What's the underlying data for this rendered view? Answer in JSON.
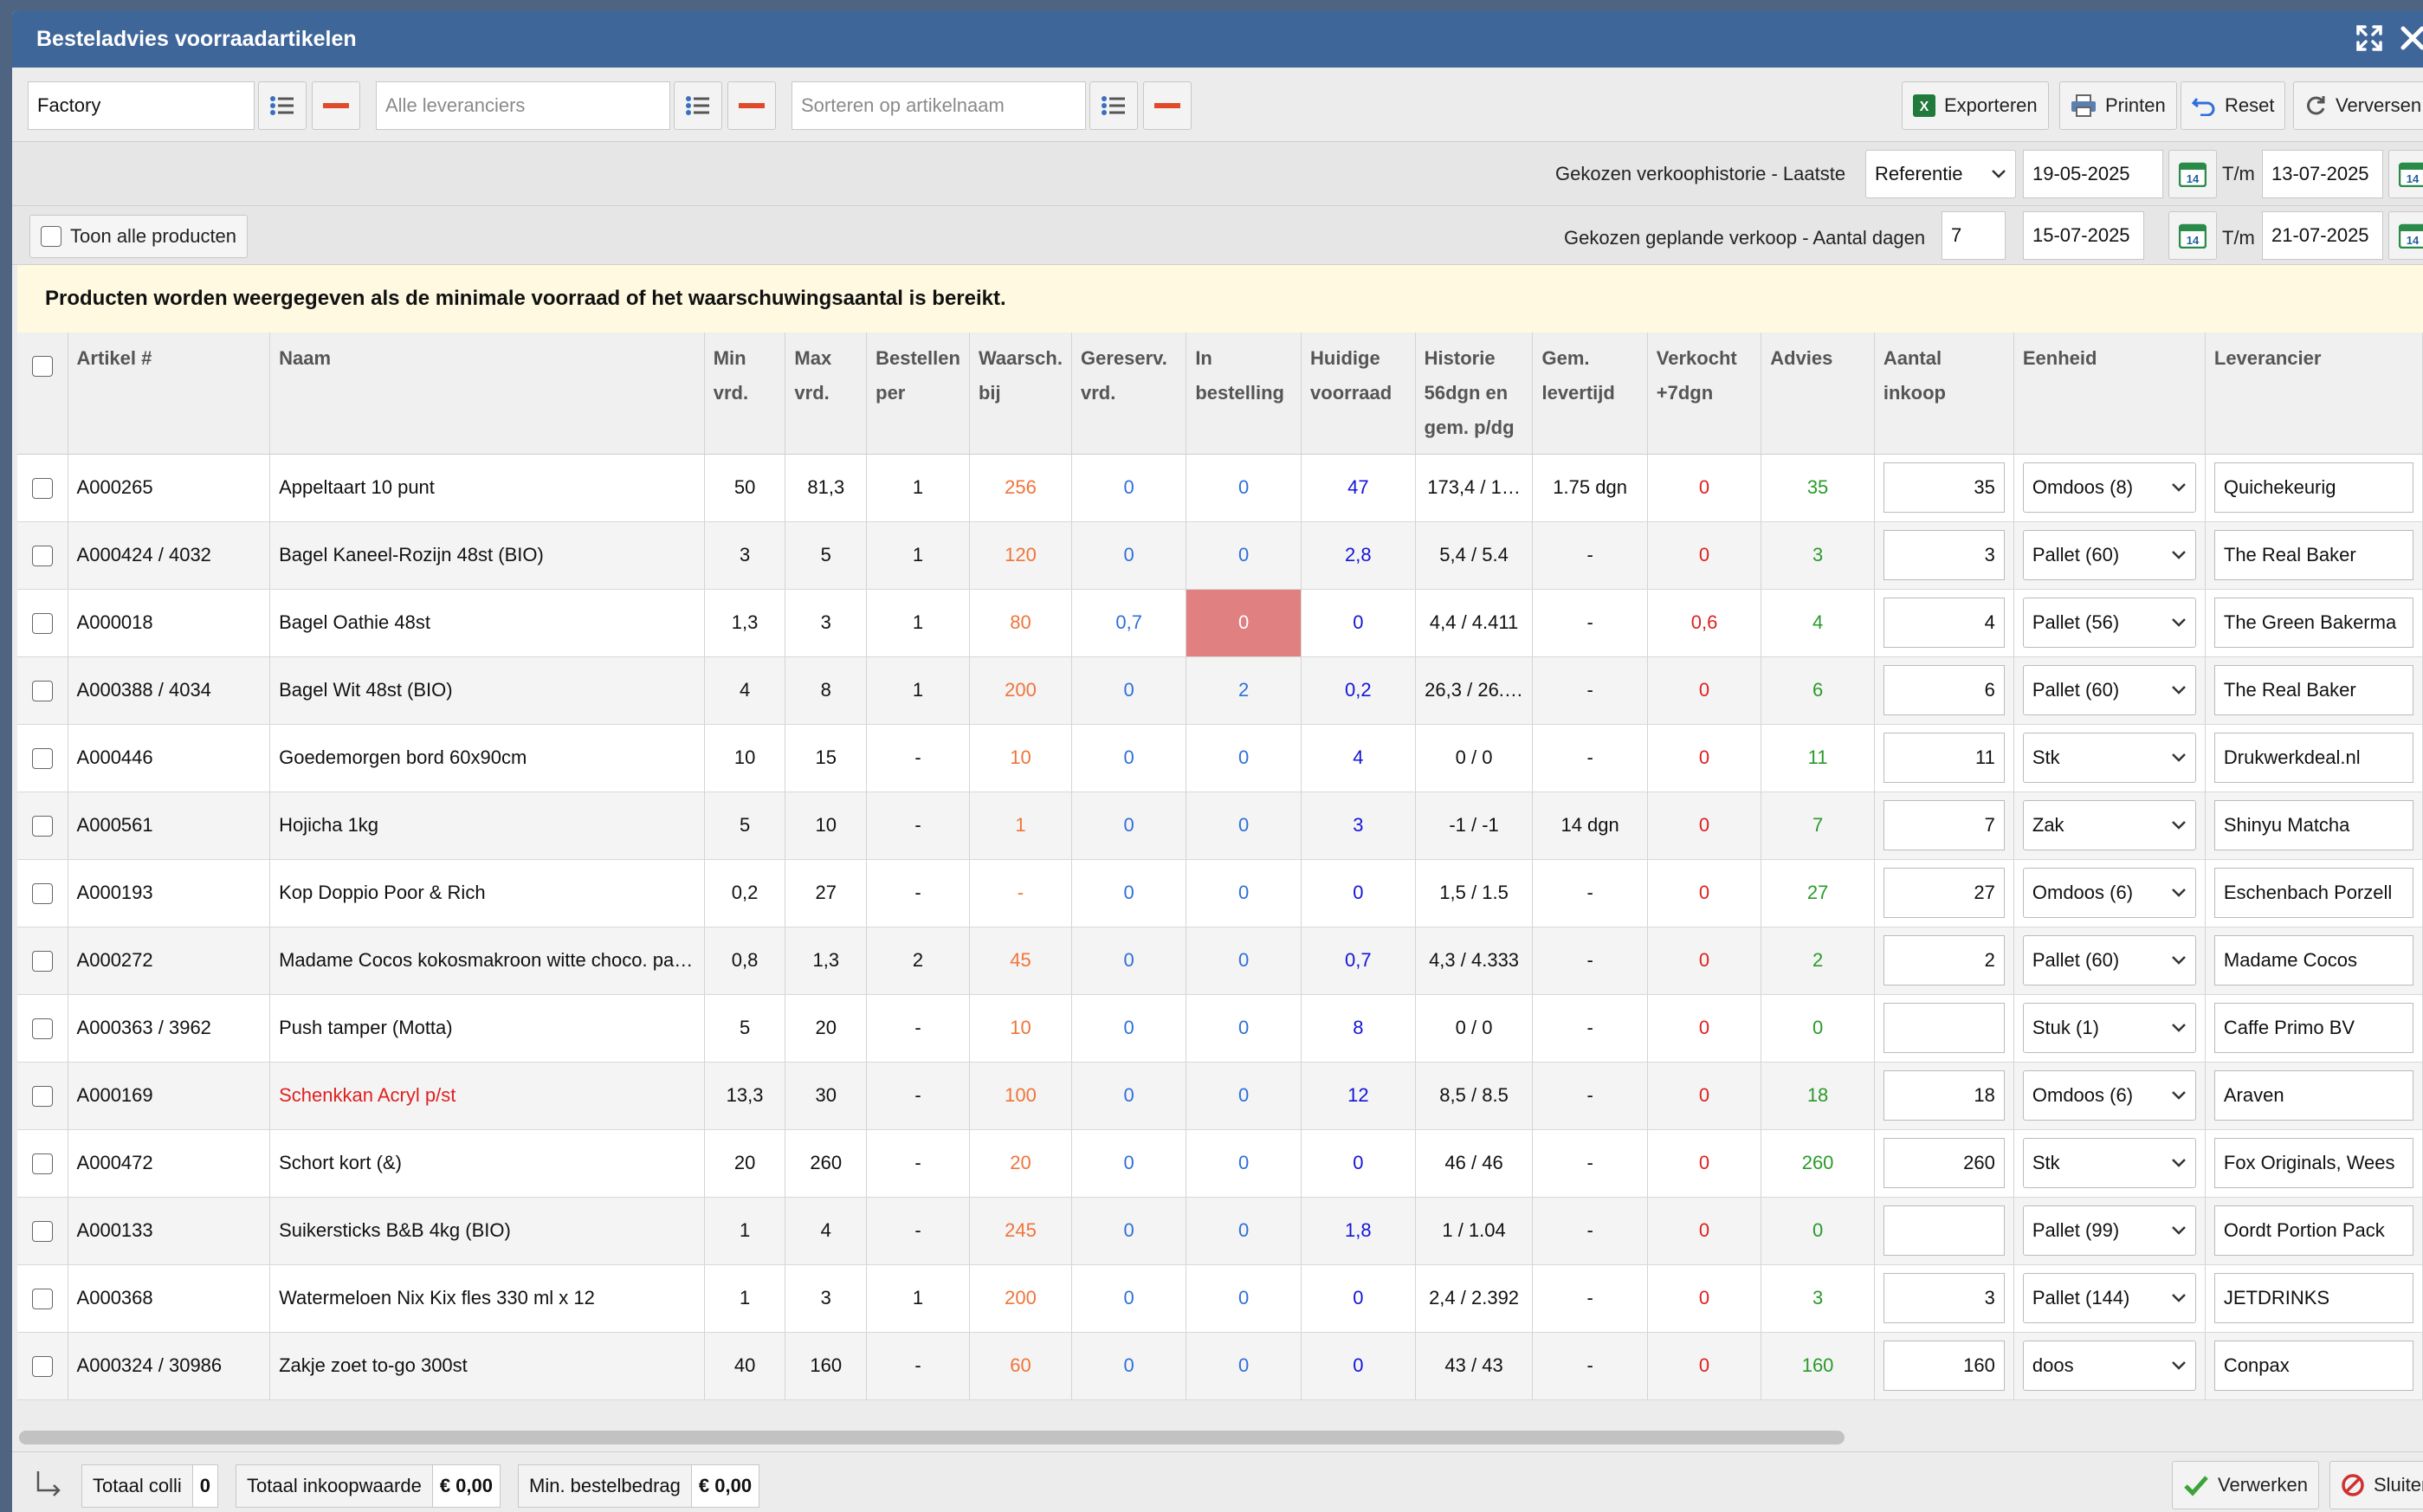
{
  "window": {
    "title": "Besteladvies voorraadartikelen"
  },
  "filters": {
    "location_value": "Factory",
    "supplier_placeholder": "Alle leveranciers",
    "sort_placeholder": "Sorteren op artikelnaam"
  },
  "toolbar": {
    "export": "Exporteren",
    "print": "Printen",
    "reset": "Reset",
    "refresh": "Verversen"
  },
  "history": {
    "label": "Gekozen verkoophistorie - Laatste",
    "mode": "Referentie",
    "from": "19-05-2025",
    "until_label": "T/m",
    "to": "13-07-2025",
    "cal_day": "14"
  },
  "planned": {
    "show_all_label": "Toon alle producten",
    "label": "Gekozen geplande verkoop - Aantal dagen",
    "days": "7",
    "from": "15-07-2025",
    "until_label": "T/m",
    "to": "21-07-2025",
    "cal_day": "14"
  },
  "notice": "Producten worden weergegeven als de minimale voorraad of het waarschuwingsaantal is bereikt.",
  "columns": [
    [
      "Artikel #"
    ],
    [
      "Naam"
    ],
    [
      "Min",
      "vrd."
    ],
    [
      "Max",
      "vrd."
    ],
    [
      "Bestellen",
      "per"
    ],
    [
      "Waarsch.",
      "bij"
    ],
    [
      "Gereserv.",
      "vrd."
    ],
    [
      "In",
      "bestelling"
    ],
    [
      "Huidige",
      "voorraad"
    ],
    [
      "Historie",
      "56dgn en",
      "gem. p/dg"
    ],
    [
      "Gem.",
      "levertijd"
    ],
    [
      "Verkocht",
      "+7dgn"
    ],
    [
      "Advies"
    ],
    [
      "Aantal",
      "inkoop"
    ],
    [
      "Eenheid"
    ],
    [
      "Leverancier"
    ]
  ],
  "rows": [
    {
      "art": "A000265",
      "name": "Appeltaart 10 punt",
      "min": "50",
      "max": "81,3",
      "per": "1",
      "warn": "256",
      "res": "0",
      "ord": "0",
      "stock": "47",
      "hist": "173,4 / 1…",
      "lead": "1.75 dgn",
      "sold": "0",
      "adv": "35",
      "qty": "35",
      "unit": "Omdoos (8)",
      "vendor": "Quichekeurig"
    },
    {
      "art": "A000424 / 4032",
      "name": "Bagel Kaneel-Rozijn 48st (BIO)",
      "min": "3",
      "max": "5",
      "per": "1",
      "warn": "120",
      "res": "0",
      "ord": "0",
      "stock": "2,8",
      "hist": "5,4 / 5.4",
      "lead": "-",
      "sold": "0",
      "adv": "3",
      "qty": "3",
      "unit": "Pallet (60)",
      "vendor": "The Real Baker"
    },
    {
      "art": "A000018",
      "name": "Bagel Oathie 48st",
      "min": "1,3",
      "max": "3",
      "per": "1",
      "warn": "80",
      "res": "0,7",
      "ord": "0",
      "stock": "0",
      "hist": "4,4 / 4.411",
      "lead": "-",
      "sold": "0,6",
      "adv": "4",
      "qty": "4",
      "unit": "Pallet (56)",
      "vendor": "The Green Bakerma"
    },
    {
      "art": "A000388 / 4034",
      "name": "Bagel Wit 48st (BIO)",
      "min": "4",
      "max": "8",
      "per": "1",
      "warn": "200",
      "res": "0",
      "ord": "2",
      "stock": "0,2",
      "hist": "26,3 / 26.…",
      "lead": "-",
      "sold": "0",
      "adv": "6",
      "qty": "6",
      "unit": "Pallet (60)",
      "vendor": "The Real Baker"
    },
    {
      "art": "A000446",
      "name": "Goedemorgen bord 60x90cm",
      "min": "10",
      "max": "15",
      "per": "-",
      "warn": "10",
      "res": "0",
      "ord": "0",
      "stock": "4",
      "hist": "0 / 0",
      "lead": "-",
      "sold": "0",
      "adv": "11",
      "qty": "11",
      "unit": "Stk",
      "vendor": "Drukwerkdeal.nl"
    },
    {
      "art": "A000561",
      "name": "Hojicha 1kg",
      "min": "5",
      "max": "10",
      "per": "-",
      "warn": "1",
      "res": "0",
      "ord": "0",
      "stock": "3",
      "hist": "-1 / -1",
      "lead": "14 dgn",
      "sold": "0",
      "adv": "7",
      "qty": "7",
      "unit": "Zak",
      "vendor": "Shinyu Matcha"
    },
    {
      "art": "A000193",
      "name": "Kop Doppio Poor & Rich",
      "min": "0,2",
      "max": "27",
      "per": "-",
      "warn": "-",
      "res": "0",
      "ord": "0",
      "stock": "0",
      "hist": "1,5 / 1.5",
      "lead": "-",
      "sold": "0",
      "adv": "27",
      "qty": "27",
      "unit": "Omdoos (6)",
      "vendor": "Eschenbach Porzell"
    },
    {
      "art": "A000272",
      "name": "Madame Cocos kokosmakroon witte choco. pa…",
      "min": "0,8",
      "max": "1,3",
      "per": "2",
      "warn": "45",
      "res": "0",
      "ord": "0",
      "stock": "0,7",
      "hist": "4,3 / 4.333",
      "lead": "-",
      "sold": "0",
      "adv": "2",
      "qty": "2",
      "unit": "Pallet (60)",
      "vendor": "Madame Cocos"
    },
    {
      "art": "A000363 / 3962",
      "name": "Push tamper (Motta)",
      "min": "5",
      "max": "20",
      "per": "-",
      "warn": "10",
      "res": "0",
      "ord": "0",
      "stock": "8",
      "hist": "0 / 0",
      "lead": "-",
      "sold": "0",
      "adv": "0",
      "qty": "",
      "unit": "Stuk (1)",
      "vendor": "Caffe Primo BV"
    },
    {
      "art": "A000169",
      "name": "Schenkkan Acryl p/st",
      "min": "13,3",
      "max": "30",
      "per": "-",
      "warn": "100",
      "res": "0",
      "ord": "0",
      "stock": "12",
      "hist": "8,5 / 8.5",
      "lead": "-",
      "sold": "0",
      "adv": "18",
      "qty": "18",
      "unit": "Omdoos (6)",
      "vendor": "Araven"
    },
    {
      "art": "A000472",
      "name": "Schort kort (&)",
      "min": "20",
      "max": "260",
      "per": "-",
      "warn": "20",
      "res": "0",
      "ord": "0",
      "stock": "0",
      "hist": "46 / 46",
      "lead": "-",
      "sold": "0",
      "adv": "260",
      "qty": "260",
      "unit": "Stk",
      "vendor": "Fox Originals, Wees"
    },
    {
      "art": "A000133",
      "name": "Suikersticks B&B 4kg (BIO)",
      "min": "1",
      "max": "4",
      "per": "-",
      "warn": "245",
      "res": "0",
      "ord": "0",
      "stock": "1,8",
      "hist": "1 / 1.04",
      "lead": "-",
      "sold": "0",
      "adv": "0",
      "qty": "",
      "unit": "Pallet (99)",
      "vendor": "Oordt Portion Pack"
    },
    {
      "art": "A000368",
      "name": "Watermeloen Nix Kix fles 330 ml x 12",
      "min": "1",
      "max": "3",
      "per": "1",
      "warn": "200",
      "res": "0",
      "ord": "0",
      "stock": "0",
      "hist": "2,4 / 2.392",
      "lead": "-",
      "sold": "0",
      "adv": "3",
      "qty": "3",
      "unit": "Pallet (144)",
      "vendor": "JETDRINKS"
    },
    {
      "art": "A000324 / 30986",
      "name": "Zakje zoet to-go 300st",
      "min": "40",
      "max": "160",
      "per": "-",
      "warn": "60",
      "res": "0",
      "ord": "0",
      "stock": "0",
      "hist": "43 / 43",
      "lead": "-",
      "sold": "0",
      "adv": "160",
      "qty": "160",
      "unit": "doos",
      "vendor": "Conpax"
    }
  ],
  "footer": {
    "colli_label": "Totaal colli",
    "colli_value": "0",
    "value_label": "Totaal inkoopwaarde",
    "value_value": "€ 0,00",
    "min_label": "Min. bestelbedrag",
    "min_value": "€ 0,00",
    "process": "Verwerken",
    "close": "Sluiten"
  }
}
